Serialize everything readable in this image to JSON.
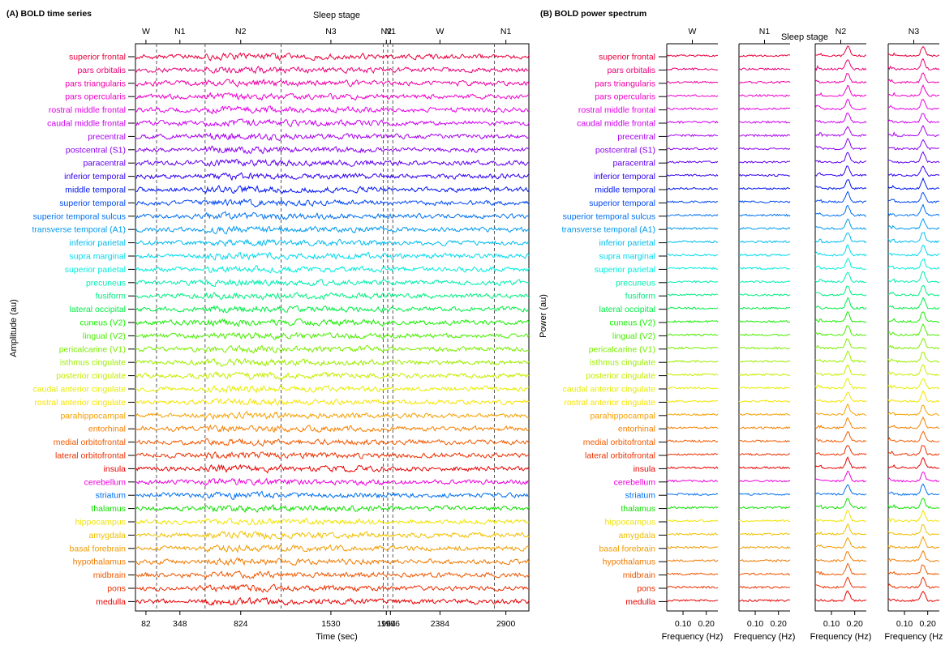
{
  "panel_a": {
    "title": "(A) BOLD time series",
    "top_axis_label": "Sleep stage",
    "y_label": "Amplitude (au)",
    "x_label": "Time (sec)"
  },
  "panel_b": {
    "title": "(B) BOLD power spectrum",
    "top_axis_label": "Sleep stage",
    "y_label": "Power (au)",
    "x_label": "Frequency (Hz)"
  },
  "chart_data": [
    {
      "type": "line",
      "panel": "A",
      "title": "(A) BOLD time series",
      "xlabel": "Time (sec)",
      "ylabel": "Amplitude (au)",
      "x_ticks": [
        82,
        348,
        824,
        1530,
        1964,
        1996,
        2384,
        2900
      ],
      "xlim": [
        0,
        3080
      ],
      "stage_markers": [
        {
          "label": "W",
          "time": 82
        },
        {
          "label": "N1",
          "time": 348
        },
        {
          "label": "N2",
          "time": 824
        },
        {
          "label": "N3",
          "time": 1530
        },
        {
          "label": "N2",
          "time": 1964
        },
        {
          "label": "N1",
          "time": 1996
        },
        {
          "label": "W",
          "time": 2384
        },
        {
          "label": "N1",
          "time": 2900
        }
      ],
      "stage_boundaries": [
        165,
        545,
        1140,
        1940,
        1975,
        2015,
        2810
      ],
      "regions": [
        {
          "name": "superior frontal",
          "color": "#e8003c"
        },
        {
          "name": "pars orbitalis",
          "color": "#ea007a"
        },
        {
          "name": "pars triangularis",
          "color": "#ee00a6"
        },
        {
          "name": "pars opercularis",
          "color": "#f000cc"
        },
        {
          "name": "rostral middle frontal",
          "color": "#e600e6"
        },
        {
          "name": "caudal middle frontal",
          "color": "#cc00ee"
        },
        {
          "name": "precentral",
          "color": "#a800ee"
        },
        {
          "name": "postcentral (S1)",
          "color": "#8c00f0"
        },
        {
          "name": "paracentral",
          "color": "#6200ee"
        },
        {
          "name": "inferior temporal",
          "color": "#3200f0"
        },
        {
          "name": "middle temporal",
          "color": "#0016f2"
        },
        {
          "name": "superior temporal",
          "color": "#0048f2"
        },
        {
          "name": "superior temporal sulcus",
          "color": "#0072f0"
        },
        {
          "name": "transverse temporal (A1)",
          "color": "#009aee"
        },
        {
          "name": "inferior parietal",
          "color": "#00bcee"
        },
        {
          "name": "supra marginal",
          "color": "#00daee"
        },
        {
          "name": "superior parietal",
          "color": "#00eedc"
        },
        {
          "name": "precuneus",
          "color": "#00eeb0"
        },
        {
          "name": "fusiform",
          "color": "#00ee80"
        },
        {
          "name": "lateral occipital",
          "color": "#00ee48"
        },
        {
          "name": "cuneus (V2)",
          "color": "#16ee00"
        },
        {
          "name": "lingual (V2)",
          "color": "#4aee00"
        },
        {
          "name": "pericalcarine (V1)",
          "color": "#7aee00"
        },
        {
          "name": "isthmus cingulate",
          "color": "#9cee00"
        },
        {
          "name": "posterior cingulate",
          "color": "#c4ee00"
        },
        {
          "name": "caudal anterior cingulate",
          "color": "#e6ee00"
        },
        {
          "name": "rostral anterior cingulate",
          "color": "#f6e400"
        },
        {
          "name": "parahippocampal",
          "color": "#f6a000"
        },
        {
          "name": "entorhinal",
          "color": "#f68000"
        },
        {
          "name": "medial orbitofrontal",
          "color": "#f25a00"
        },
        {
          "name": "lateral orbitofrontal",
          "color": "#ec3000"
        },
        {
          "name": "insula",
          "color": "#e80000"
        },
        {
          "name": "cerebellum",
          "color": "#ee00dc"
        },
        {
          "name": "striatum",
          "color": "#0070f0"
        },
        {
          "name": "thalamus",
          "color": "#10e000"
        },
        {
          "name": "hippocampus",
          "color": "#f0e400"
        },
        {
          "name": "amygdala",
          "color": "#f0c000"
        },
        {
          "name": "basal forebrain",
          "color": "#f09c00"
        },
        {
          "name": "hypothalamus",
          "color": "#f07a00"
        },
        {
          "name": "midbrain",
          "color": "#ee5800"
        },
        {
          "name": "pons",
          "color": "#ec2e00"
        },
        {
          "name": "medulla",
          "color": "#e80000"
        }
      ]
    },
    {
      "type": "line",
      "panel": "B",
      "title": "(B) BOLD power spectrum",
      "ylabel": "Power (au)",
      "subplots": [
        {
          "stage": "W",
          "xlabel": "Frequency (Hz)",
          "x_ticks": [
            "0.10",
            "0.20"
          ],
          "peak_hz": null
        },
        {
          "stage": "N1",
          "xlabel": "Frequency (Hz)",
          "x_ticks": [
            "0.10",
            "0.20"
          ],
          "peak_hz": null
        },
        {
          "stage": "N2",
          "xlabel": "Frequency (Hz)",
          "x_ticks": [
            "0.10",
            "0.20"
          ],
          "peak_hz": 0.17
        },
        {
          "stage": "N3",
          "xlabel": "Frequency (Hz",
          "x_ticks": [
            "0.10",
            "0.20"
          ],
          "peak_hz": 0.18
        }
      ],
      "xlim": [
        0.03,
        0.25
      ]
    }
  ]
}
